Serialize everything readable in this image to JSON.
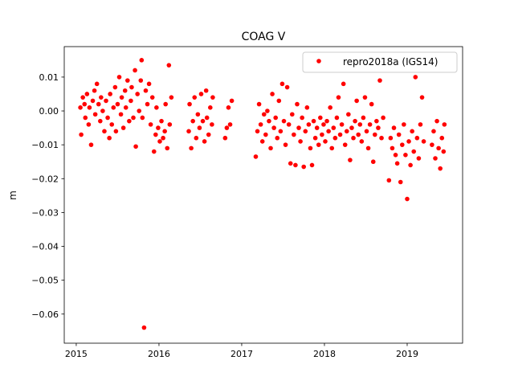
{
  "chart_data": {
    "type": "scatter",
    "title": "COAG V",
    "xlabel": "",
    "ylabel": "m",
    "xlim": [
      2014.855,
      2019.67
    ],
    "ylim": [
      -0.0686,
      0.019
    ],
    "xticks": [
      2015,
      2016,
      2017,
      2018,
      2019
    ],
    "xtick_labels": [
      "2015",
      "2016",
      "2017",
      "2018",
      "2019"
    ],
    "yticks": [
      0.01,
      0.0,
      -0.01,
      -0.02,
      -0.03,
      -0.04,
      -0.05,
      -0.06
    ],
    "ytick_labels": [
      "0.01",
      "0.00",
      "−0.01",
      "−0.02",
      "−0.03",
      "−0.04",
      "−0.05",
      "−0.06"
    ],
    "grid": false,
    "legend": {
      "placement": "top-right",
      "entries": [
        "repro2018a (IGS14)"
      ]
    },
    "series": [
      {
        "name": "repro2018a (IGS14)",
        "color": "#ff0000",
        "points": [
          [
            2015.05,
            0.001
          ],
          [
            2015.06,
            -0.007
          ],
          [
            2015.08,
            0.004
          ],
          [
            2015.1,
            0.002
          ],
          [
            2015.11,
            -0.002
          ],
          [
            2015.13,
            0.005
          ],
          [
            2015.15,
            -0.004
          ],
          [
            2015.16,
            0.001
          ],
          [
            2015.18,
            -0.01
          ],
          [
            2015.2,
            0.003
          ],
          [
            2015.22,
            0.006
          ],
          [
            2015.23,
            -0.001
          ],
          [
            2015.25,
            0.008
          ],
          [
            2015.27,
            0.002
          ],
          [
            2015.29,
            -0.003
          ],
          [
            2015.3,
            0.004
          ],
          [
            2015.32,
            0.0
          ],
          [
            2015.34,
            -0.006
          ],
          [
            2015.36,
            0.003
          ],
          [
            2015.38,
            -0.002
          ],
          [
            2015.4,
            -0.008
          ],
          [
            2015.41,
            0.005
          ],
          [
            2015.43,
            -0.004
          ],
          [
            2015.45,
            0.001
          ],
          [
            2015.47,
            0.007
          ],
          [
            2015.48,
            -0.006
          ],
          [
            2015.5,
            0.002
          ],
          [
            2015.52,
            0.01
          ],
          [
            2015.54,
            -0.001
          ],
          [
            2015.55,
            0.004
          ],
          [
            2015.57,
            -0.005
          ],
          [
            2015.59,
            0.006
          ],
          [
            2015.6,
            0.001
          ],
          [
            2015.62,
            0.009
          ],
          [
            2015.64,
            -0.003
          ],
          [
            2015.66,
            0.003
          ],
          [
            2015.67,
            0.007
          ],
          [
            2015.69,
            -0.002
          ],
          [
            2015.71,
            0.012
          ],
          [
            2015.72,
            -0.0105
          ],
          [
            2015.74,
            0.005
          ],
          [
            2015.76,
            0.0
          ],
          [
            2015.78,
            0.009
          ],
          [
            2015.79,
            0.015
          ],
          [
            2015.8,
            -0.002
          ],
          [
            2015.82,
            -0.064
          ],
          [
            2015.84,
            0.006
          ],
          [
            2015.86,
            0.002
          ],
          [
            2015.88,
            0.008
          ],
          [
            2015.9,
            -0.004
          ],
          [
            2015.92,
            0.004
          ],
          [
            2015.94,
            -0.012
          ],
          [
            2015.96,
            -0.007
          ],
          [
            2015.97,
            0.001
          ],
          [
            2015.99,
            -0.005
          ],
          [
            2016.01,
            -0.009
          ],
          [
            2016.03,
            -0.003
          ],
          [
            2016.05,
            -0.008
          ],
          [
            2016.07,
            -0.006
          ],
          [
            2016.08,
            0.002
          ],
          [
            2016.1,
            -0.011
          ],
          [
            2016.12,
            0.0135
          ],
          [
            2016.13,
            -0.004
          ],
          [
            2016.15,
            0.004
          ],
          [
            2016.36,
            -0.006
          ],
          [
            2016.37,
            0.002
          ],
          [
            2016.39,
            -0.011
          ],
          [
            2016.41,
            -0.003
          ],
          [
            2016.43,
            0.004
          ],
          [
            2016.45,
            -0.008
          ],
          [
            2016.47,
            -0.001
          ],
          [
            2016.49,
            -0.005
          ],
          [
            2016.51,
            0.005
          ],
          [
            2016.53,
            -0.003
          ],
          [
            2016.55,
            -0.009
          ],
          [
            2016.57,
            0.006
          ],
          [
            2016.58,
            -0.002
          ],
          [
            2016.6,
            -0.007
          ],
          [
            2016.62,
            0.001
          ],
          [
            2016.64,
            -0.004
          ],
          [
            2016.65,
            0.004
          ],
          [
            2016.8,
            -0.008
          ],
          [
            2016.82,
            -0.005
          ],
          [
            2016.84,
            0.001
          ],
          [
            2016.86,
            -0.004
          ],
          [
            2016.88,
            0.003
          ],
          [
            2017.17,
            -0.0135
          ],
          [
            2017.19,
            -0.006
          ],
          [
            2017.21,
            0.002
          ],
          [
            2017.23,
            -0.004
          ],
          [
            2017.25,
            -0.009
          ],
          [
            2017.27,
            -0.001
          ],
          [
            2017.29,
            -0.007
          ],
          [
            2017.31,
            0.0
          ],
          [
            2017.33,
            -0.003
          ],
          [
            2017.35,
            -0.011
          ],
          [
            2017.37,
            0.005
          ],
          [
            2017.39,
            -0.005
          ],
          [
            2017.41,
            -0.002
          ],
          [
            2017.43,
            -0.008
          ],
          [
            2017.45,
            0.003
          ],
          [
            2017.47,
            -0.006
          ],
          [
            2017.49,
            0.008
          ],
          [
            2017.51,
            -0.003
          ],
          [
            2017.53,
            -0.01
          ],
          [
            2017.55,
            0.007
          ],
          [
            2017.57,
            -0.004
          ],
          [
            2017.59,
            -0.0155
          ],
          [
            2017.61,
            -0.001
          ],
          [
            2017.63,
            -0.007
          ],
          [
            2017.65,
            -0.016
          ],
          [
            2017.67,
            0.002
          ],
          [
            2017.69,
            -0.005
          ],
          [
            2017.71,
            -0.009
          ],
          [
            2017.73,
            -0.002
          ],
          [
            2017.75,
            -0.0165
          ],
          [
            2017.77,
            -0.006
          ],
          [
            2017.79,
            0.001
          ],
          [
            2017.81,
            -0.004
          ],
          [
            2017.83,
            -0.011
          ],
          [
            2017.85,
            -0.016
          ],
          [
            2017.87,
            -0.003
          ],
          [
            2017.89,
            -0.008
          ],
          [
            2017.91,
            -0.005
          ],
          [
            2017.93,
            -0.01
          ],
          [
            2017.95,
            -0.002
          ],
          [
            2017.97,
            -0.007
          ],
          [
            2017.99,
            -0.004
          ],
          [
            2018.01,
            -0.009
          ],
          [
            2018.03,
            -0.003
          ],
          [
            2018.05,
            -0.006
          ],
          [
            2018.07,
            0.001
          ],
          [
            2018.09,
            -0.011
          ],
          [
            2018.11,
            -0.005
          ],
          [
            2018.13,
            -0.008
          ],
          [
            2018.15,
            -0.002
          ],
          [
            2018.17,
            0.004
          ],
          [
            2018.19,
            -0.007
          ],
          [
            2018.21,
            -0.004
          ],
          [
            2018.23,
            0.008
          ],
          [
            2018.25,
            -0.01
          ],
          [
            2018.27,
            -0.006
          ],
          [
            2018.29,
            -0.001
          ],
          [
            2018.31,
            -0.0145
          ],
          [
            2018.33,
            -0.005
          ],
          [
            2018.35,
            -0.008
          ],
          [
            2018.37,
            -0.003
          ],
          [
            2018.39,
            0.003
          ],
          [
            2018.41,
            -0.007
          ],
          [
            2018.43,
            -0.004
          ],
          [
            2018.45,
            -0.009
          ],
          [
            2018.47,
            -0.002
          ],
          [
            2018.49,
            0.004
          ],
          [
            2018.51,
            -0.006
          ],
          [
            2018.53,
            -0.011
          ],
          [
            2018.55,
            -0.004
          ],
          [
            2018.57,
            0.002
          ],
          [
            2018.59,
            -0.015
          ],
          [
            2018.61,
            -0.007
          ],
          [
            2018.63,
            -0.003
          ],
          [
            2018.65,
            -0.005
          ],
          [
            2018.67,
            0.009
          ],
          [
            2018.69,
            -0.008
          ],
          [
            2018.71,
            -0.002
          ],
          [
            2018.78,
            -0.0205
          ],
          [
            2018.8,
            -0.008
          ],
          [
            2018.82,
            -0.011
          ],
          [
            2018.84,
            -0.005
          ],
          [
            2018.86,
            -0.013
          ],
          [
            2018.88,
            -0.0155
          ],
          [
            2018.9,
            -0.007
          ],
          [
            2018.92,
            -0.021
          ],
          [
            2018.94,
            -0.01
          ],
          [
            2018.96,
            -0.004
          ],
          [
            2018.98,
            -0.013
          ],
          [
            2019.0,
            -0.026
          ],
          [
            2019.02,
            -0.009
          ],
          [
            2019.04,
            -0.016
          ],
          [
            2019.06,
            -0.006
          ],
          [
            2019.08,
            -0.012
          ],
          [
            2019.1,
            0.01
          ],
          [
            2019.12,
            -0.008
          ],
          [
            2019.14,
            -0.014
          ],
          [
            2019.16,
            -0.004
          ],
          [
            2019.18,
            0.004
          ],
          [
            2019.2,
            -0.009
          ],
          [
            2019.3,
            -0.01
          ],
          [
            2019.32,
            -0.006
          ],
          [
            2019.34,
            -0.014
          ],
          [
            2019.36,
            -0.003
          ],
          [
            2019.38,
            -0.011
          ],
          [
            2019.4,
            -0.017
          ],
          [
            2019.42,
            -0.008
          ],
          [
            2019.44,
            -0.012
          ],
          [
            2019.45,
            -0.004
          ]
        ]
      }
    ]
  }
}
